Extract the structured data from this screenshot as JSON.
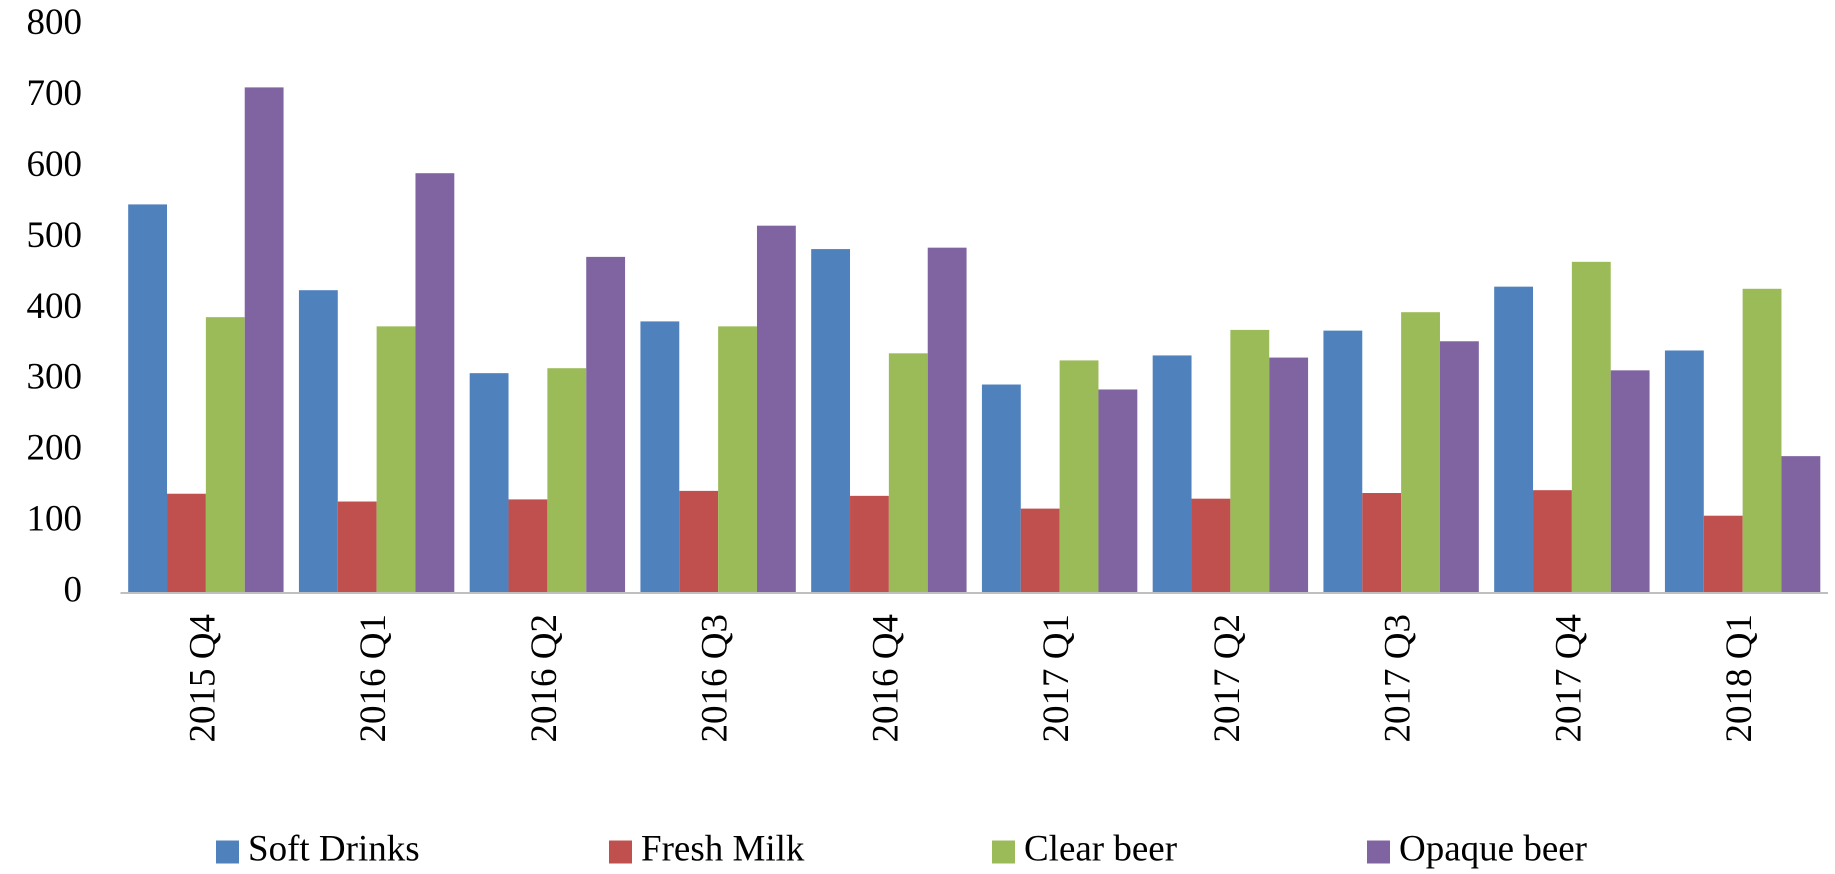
{
  "chart_data": {
    "type": "bar",
    "categories": [
      "2015 Q4",
      "2016 Q1",
      "2016 Q2",
      "2016 Q3",
      "2016 Q4",
      "2017 Q1",
      "2017 Q2",
      "2017 Q3",
      "2017 Q4",
      "2018 Q1"
    ],
    "series": [
      {
        "name": "Soft Drinks",
        "color": "#4f81bd",
        "values": [
          548,
          427,
          310,
          383,
          485,
          294,
          335,
          370,
          432,
          342
        ]
      },
      {
        "name": "Fresh Milk",
        "color": "#c0504d",
        "values": [
          140,
          129,
          132,
          144,
          137,
          119,
          133,
          141,
          145,
          109
        ]
      },
      {
        "name": "Clear beer",
        "color": "#9bbb59",
        "values": [
          389,
          376,
          317,
          376,
          338,
          328,
          371,
          396,
          467,
          429
        ]
      },
      {
        "name": "Opaque beer",
        "color": "#8064a2",
        "values": [
          713,
          592,
          474,
          518,
          487,
          287,
          332,
          355,
          314,
          193
        ]
      }
    ],
    "ylim": [
      0,
      800
    ],
    "yticks": [
      0,
      100,
      200,
      300,
      400,
      500,
      600,
      700,
      800
    ],
    "grid": false,
    "legend": "bottom"
  }
}
